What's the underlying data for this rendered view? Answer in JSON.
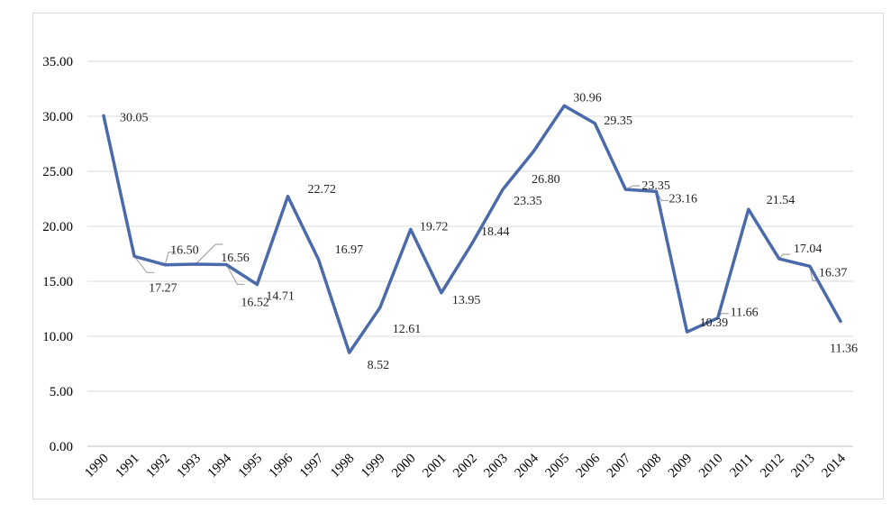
{
  "chart_data": {
    "type": "line",
    "title": "",
    "xlabel": "",
    "ylabel": "",
    "ylim": [
      0,
      35
    ],
    "y_ticks": [
      "0.00",
      "5.00",
      "10.00",
      "15.00",
      "20.00",
      "25.00",
      "30.00",
      "35.00"
    ],
    "grid": true,
    "legend": "none",
    "line_color": "#4a6aaa",
    "categories": [
      "1990",
      "1991",
      "1992",
      "1993",
      "1994",
      "1995",
      "1996",
      "1997",
      "1998",
      "1999",
      "2000",
      "2001",
      "2002",
      "2003",
      "2004",
      "2005",
      "2006",
      "2007",
      "2008",
      "2009",
      "2010",
      "2011",
      "2012",
      "2013",
      "2014"
    ],
    "series": [
      {
        "values": [
          30.05,
          17.27,
          16.5,
          16.56,
          16.52,
          14.71,
          22.72,
          16.97,
          8.52,
          12.61,
          19.72,
          13.95,
          18.44,
          23.35,
          26.8,
          30.96,
          29.35,
          23.35,
          23.16,
          10.39,
          11.66,
          21.54,
          17.04,
          16.37,
          11.36
        ],
        "labels": [
          "30.05",
          "17.27",
          "16.50",
          "16.56",
          "16.52",
          "14.71",
          "22.72",
          "16.97",
          "8.52",
          "12.61",
          "19.72",
          "13.95",
          "18.44",
          "23.35",
          "26.80",
          "30.96",
          "29.35",
          "23.35",
          "23.16",
          "10.39",
          "11.66",
          "21.54",
          "17.04",
          "16.37",
          "11.36"
        ]
      }
    ]
  }
}
